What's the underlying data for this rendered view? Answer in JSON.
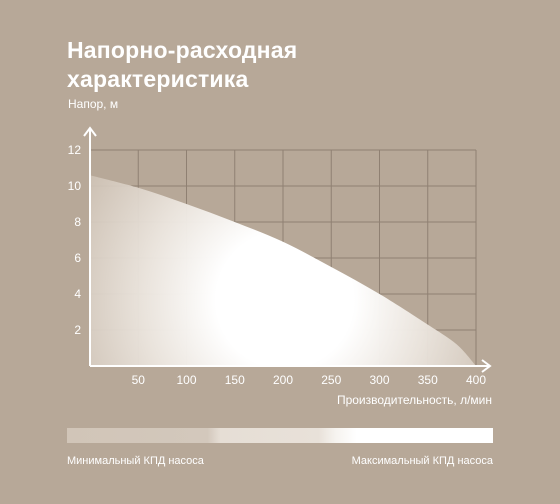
{
  "title_lines": [
    "Напорно-расходная",
    "характеристика"
  ],
  "chart_data": {
    "type": "area",
    "ylabel": "Напор, м",
    "xlabel": "Производительность, л/мин",
    "xlim": [
      0,
      400
    ],
    "ylim": [
      0,
      12
    ],
    "x_ticks": [
      50,
      100,
      150,
      200,
      250,
      300,
      350,
      400
    ],
    "y_ticks": [
      2,
      4,
      6,
      8,
      10,
      12
    ],
    "grid": true,
    "x": [
      0,
      50,
      100,
      150,
      200,
      250,
      300,
      350,
      380,
      400
    ],
    "y": [
      10.6,
      9.9,
      9.0,
      8.0,
      6.9,
      5.5,
      4.0,
      2.3,
      1.2,
      0.0
    ]
  },
  "legend": {
    "min_label": "Минимальный КПД насоса",
    "max_label": "Максимальный КПД насоса"
  },
  "colors": {
    "background": "#b7a898",
    "grid": "#8f8072",
    "axis": "#ffffff",
    "curve_fill": "#ffffff"
  }
}
